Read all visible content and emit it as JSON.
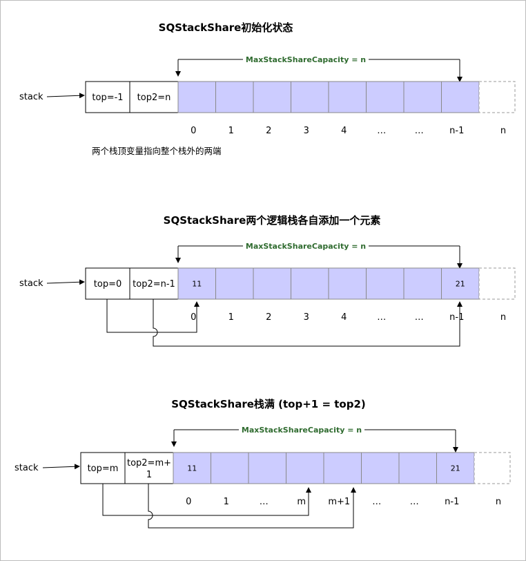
{
  "colors": {
    "cell_fill": "#ccccff",
    "cell_stroke": "#888888",
    "capacity_text": "#2f6b2f",
    "line": "#000000"
  },
  "diagrams": [
    {
      "title": "SQStackShare初始化状态",
      "capacity_label": "MaxStackShareCapacity  =  n",
      "stack_label": "stack",
      "top_label": "top=-1",
      "top2_label": "top2=n",
      "cell_values": [
        "",
        "",
        "",
        "",
        "",
        "",
        "",
        ""
      ],
      "indices": [
        "0",
        "1",
        "2",
        "3",
        "4",
        "…",
        "…",
        "n-1",
        "n"
      ],
      "note": "两个栈顶变量指向整个栈外的两端"
    },
    {
      "title": "SQStackShare两个逻辑栈各自添加一个元素",
      "capacity_label": "MaxStackShareCapacity  =  n",
      "stack_label": "stack",
      "top_label": "top=0",
      "top2_label": "top2=n-1",
      "cell_values": [
        "11",
        "",
        "",
        "",
        "",
        "",
        "",
        "21"
      ],
      "indices": [
        "0",
        "1",
        "2",
        "3",
        "4",
        "…",
        "…",
        "n-1",
        "n"
      ]
    },
    {
      "title": "SQStackShare栈满 (top+1 = top2)",
      "capacity_label": "MaxStackShareCapacity  =  n",
      "stack_label": "stack",
      "top_label": "top=m",
      "top2_label_line1": "top2=m+",
      "top2_label_line2": "1",
      "cell_values": [
        "11",
        "",
        "",
        "",
        "",
        "",
        "",
        "21"
      ],
      "indices": [
        "0",
        "1",
        "…",
        "m",
        "m+1",
        "…",
        "…",
        "n-1",
        "n"
      ]
    }
  ]
}
